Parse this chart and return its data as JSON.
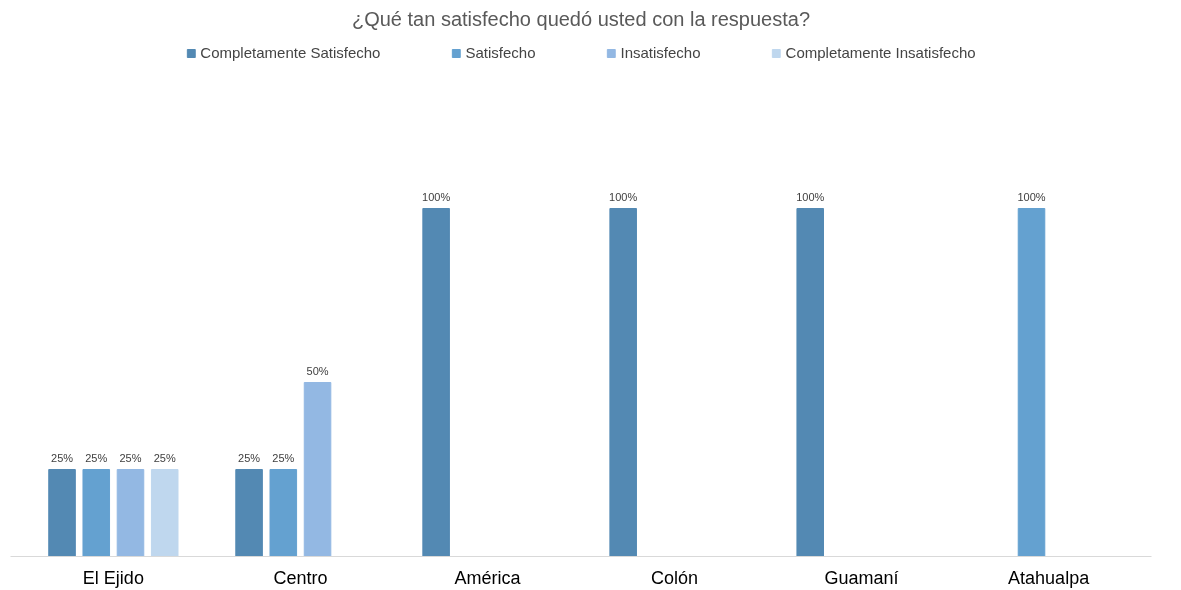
{
  "chart_data": {
    "type": "bar",
    "title": "¿Qué tan satisfecho quedó usted con la respuesta?",
    "categories": [
      "El Ejido",
      "Centro",
      "América",
      "Colón",
      "Guamaní",
      "Atahualpa"
    ],
    "series": [
      {
        "name": "Completamente Satisfecho",
        "color": "#5389b3",
        "values": [
          25,
          25,
          100,
          100,
          100,
          null
        ],
        "value_labels": [
          "25%",
          "25%",
          "100%",
          "100%",
          "100%",
          null
        ]
      },
      {
        "name": "Satisfecho",
        "color": "#64a1d0",
        "values": [
          25,
          25,
          null,
          null,
          null,
          100
        ],
        "value_labels": [
          "25%",
          "25%",
          null,
          null,
          null,
          "100%"
        ]
      },
      {
        "name": "Insatisfecho",
        "color": "#93b8e3",
        "values": [
          25,
          50,
          null,
          null,
          null,
          null
        ],
        "value_labels": [
          "25%",
          "50%",
          null,
          null,
          null,
          null
        ]
      },
      {
        "name": "Completamente Insatisfecho",
        "color": "#bfd7ee",
        "values": [
          25,
          null,
          null,
          null,
          null,
          null
        ],
        "value_labels": [
          "25%",
          null,
          null,
          null,
          null,
          null
        ]
      }
    ],
    "tick_labels": "x",
    "legend": "top"
  }
}
